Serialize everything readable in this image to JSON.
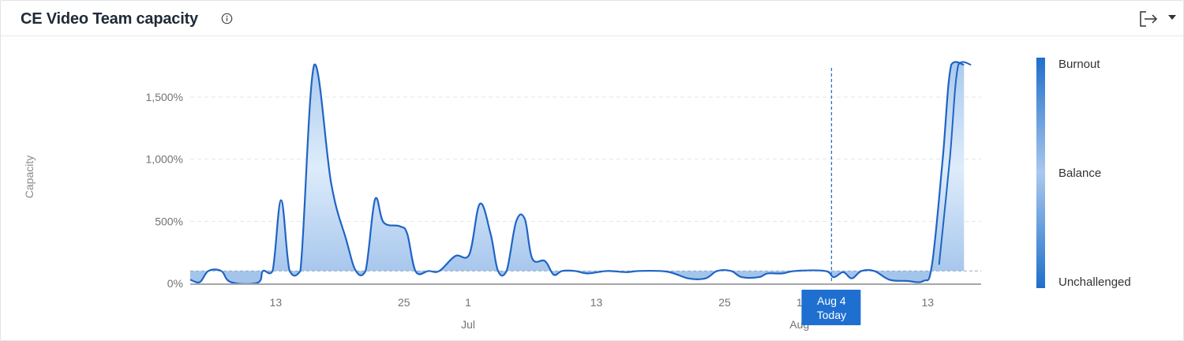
{
  "header": {
    "title": "CE Video Team capacity",
    "info_icon": "info-icon",
    "export_icon": "export-icon",
    "menu_icon": "caret-down-icon"
  },
  "chart_data": {
    "type": "area",
    "ylabel": "Capacity",
    "ylim": [
      0,
      1900
    ],
    "y_ticks": [
      {
        "value": 0,
        "label": "0%"
      },
      {
        "value": 500,
        "label": "500%"
      },
      {
        "value": 1000,
        "label": "1,000%"
      },
      {
        "value": 1500,
        "label": "1,500%"
      }
    ],
    "x_domain": [
      "2025-06-05",
      "2025-08-18"
    ],
    "x_ticks": [
      {
        "x": "2025-06-13",
        "label": "13"
      },
      {
        "x": "2025-06-25",
        "label": "25"
      },
      {
        "x": "2025-07-01",
        "label": "1"
      },
      {
        "x": "2025-07-13",
        "label": "13"
      },
      {
        "x": "2025-07-25",
        "label": "25"
      },
      {
        "x": "2025-08-01",
        "label": "1"
      },
      {
        "x": "2025-08-13",
        "label": "13"
      }
    ],
    "month_labels": [
      {
        "x": "2025-07-01",
        "label": "Jul"
      },
      {
        "x": "2025-08-01",
        "label": "Aug"
      }
    ],
    "balance_line": 100,
    "today": {
      "x": "2025-08-04",
      "date_label": "Aug 4",
      "label": "Today"
    },
    "grid": true,
    "series": [
      {
        "points": [
          [
            "2025-06-05",
            30
          ],
          [
            "2025-06-05.9",
            10
          ],
          [
            "2025-06-06.7",
            100
          ],
          [
            "2025-06-07.9",
            100
          ],
          [
            "2025-06-08.8",
            10
          ],
          [
            "2025-06-11.3",
            5
          ],
          [
            "2025-06-11.8",
            100
          ],
          [
            "2025-06-12.7",
            100
          ],
          [
            "2025-06-13.5",
            670
          ],
          [
            "2025-06-14.3",
            100
          ],
          [
            "2025-06-15.3",
            100
          ],
          [
            "2025-06-16.6",
            1760
          ],
          [
            "2025-06-18.2",
            800
          ],
          [
            "2025-06-19.6",
            350
          ],
          [
            "2025-06-20.5",
            100
          ],
          [
            "2025-06-21.4",
            100
          ],
          [
            "2025-06-22.3",
            680
          ],
          [
            "2025-06-23.1",
            490
          ],
          [
            "2025-06-24.6",
            460
          ],
          [
            "2025-06-25.3",
            400
          ],
          [
            "2025-06-26.1",
            95
          ],
          [
            "2025-06-27.3",
            100
          ],
          [
            "2025-06-28.3",
            100
          ],
          [
            "2025-06-29.8",
            220
          ],
          [
            "2025-07-01.1",
            230
          ],
          [
            "2025-07-02.1",
            640
          ],
          [
            "2025-07-03.1",
            400
          ],
          [
            "2025-07-03.8",
            100
          ],
          [
            "2025-07-04.6",
            100
          ],
          [
            "2025-07-05.5",
            500
          ],
          [
            "2025-07-06.3",
            520
          ],
          [
            "2025-07-07",
            200
          ],
          [
            "2025-07-08.2",
            180
          ],
          [
            "2025-07-09",
            70
          ],
          [
            "2025-07-09.8",
            100
          ],
          [
            "2025-07-11",
            100
          ],
          [
            "2025-07-12.2",
            80
          ],
          [
            "2025-07-14",
            100
          ],
          [
            "2025-07-15.8",
            90
          ],
          [
            "2025-07-17",
            100
          ],
          [
            "2025-07-19.6",
            95
          ],
          [
            "2025-07-21.6",
            40
          ],
          [
            "2025-07-23.2",
            40
          ],
          [
            "2025-07-24.3",
            100
          ],
          [
            "2025-07-25.6",
            100
          ],
          [
            "2025-07-26.6",
            50
          ],
          [
            "2025-07-28.2",
            50
          ],
          [
            "2025-07-29",
            80
          ],
          [
            "2025-07-30.4",
            80
          ],
          [
            "2025-07-31.6",
            100
          ],
          [
            "2025-08-03.4",
            100
          ],
          [
            "2025-08-04.2",
            50
          ],
          [
            "2025-08-05.1",
            90
          ],
          [
            "2025-08-05.9",
            40
          ],
          [
            "2025-08-06.8",
            100
          ],
          [
            "2025-08-08",
            100
          ],
          [
            "2025-08-09.4",
            30
          ],
          [
            "2025-08-11",
            20
          ],
          [
            "2025-08-12.6",
            20
          ],
          [
            "2025-08-13.4",
            150
          ],
          [
            "2025-08-14.4",
            1000
          ],
          [
            "2025-08-15.2",
            1760
          ],
          [
            "2025-08-16.4",
            1760
          ]
        ]
      }
    ],
    "legend": {
      "position": "right",
      "labels": [
        "Burnout",
        "Balance",
        "Unchallenged"
      ],
      "colors": [
        "#1f6fcb",
        "#a9c8ee",
        "#1f6fcb"
      ]
    },
    "colors": {
      "line": "#1f64c4",
      "fill_light": "#d6e6f8",
      "fill_dark": "#9fc2ea",
      "today_box": "#1f6fd1",
      "grid": "#e3e6ea",
      "axis": "#a6a6a6",
      "tick_text": "#737373"
    }
  }
}
